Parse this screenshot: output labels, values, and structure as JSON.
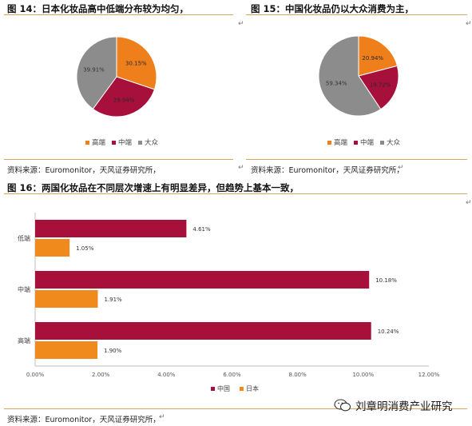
{
  "figure14": {
    "title": "图 14：日本化妆品高中低端分布较为均匀，",
    "source": "资料来源：Euromonitor，天风证券研究所，",
    "legend": [
      "高端",
      "中端",
      "大众"
    ]
  },
  "figure15": {
    "title": "图 15：中国化妆品仍以大众消费为主，",
    "source": "资料来源：Euromonitor，天风证券研究所，",
    "legend": [
      "高端",
      "中端",
      "大众"
    ]
  },
  "figure16": {
    "title": "图 16：两国化妆品在不同层次增速上有明显差异，但趋势上基本一致，",
    "source": "资料来源：Euromonitor，天风证券研究所，"
  },
  "watermark": "刘章明消费产业研究",
  "return_mark": "↵",
  "colors": {
    "high": "#EE7F1B",
    "mid": "#A6103A",
    "mass": "#8C8C8C",
    "china": "#A6103A",
    "japan": "#F08A1C",
    "rule": "#D9A55A"
  },
  "chart_data": [
    {
      "type": "pie",
      "categories": [
        "高端",
        "中端",
        "大众"
      ],
      "values": [
        30.15,
        29.94,
        39.91
      ],
      "labels": [
        "30.15%",
        "29.94%",
        "39.91%"
      ],
      "colors": [
        "#EE7F1B",
        "#A6103A",
        "#8C8C8C"
      ],
      "legend_position": "bottom"
    },
    {
      "type": "pie",
      "categories": [
        "高端",
        "中端",
        "大众"
      ],
      "values": [
        20.94,
        19.72,
        59.34
      ],
      "labels": [
        "20.94%",
        "19.72%",
        "59.34%"
      ],
      "colors": [
        "#EE7F1B",
        "#A6103A",
        "#8C8C8C"
      ],
      "legend_position": "bottom"
    },
    {
      "type": "bar",
      "orientation": "horizontal",
      "categories": [
        "低端",
        "中端",
        "高端"
      ],
      "series": [
        {
          "name": "中国",
          "values": [
            4.61,
            10.18,
            10.24
          ],
          "labels": [
            "4.61%",
            "10.18%",
            "10.24%"
          ],
          "color": "#A6103A"
        },
        {
          "name": "日本",
          "values": [
            1.05,
            1.91,
            1.9
          ],
          "labels": [
            "1.05%",
            "1.91%",
            "1.90%"
          ],
          "color": "#F08A1C"
        }
      ],
      "xlim": [
        0,
        12
      ],
      "xticks": [
        "0.00%",
        "2.00%",
        "4.00%",
        "6.00%",
        "8.00%",
        "10.00%",
        "12.00%"
      ],
      "legend_position": "bottom"
    }
  ]
}
